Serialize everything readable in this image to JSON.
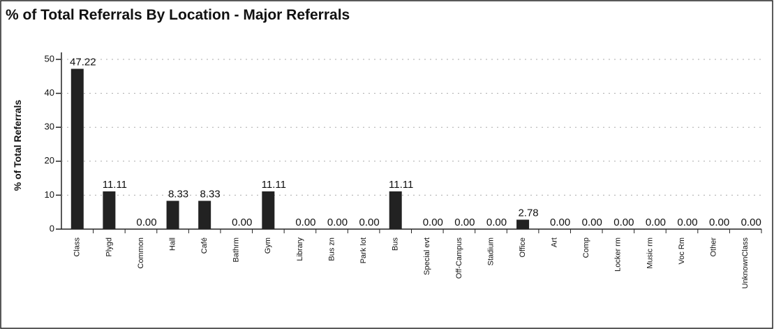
{
  "chart_data": {
    "type": "bar",
    "title": "% of Total Referrals By Location - Major Referrals",
    "y_label": "% of Total Referrals",
    "categories": [
      "Class",
      "Plygd",
      "Common",
      "Hall",
      "Café",
      "Bathrm",
      "Gym",
      "Library",
      "Bus zn",
      "Park lot",
      "Bus",
      "Special evt",
      "Off-Campus",
      "Stadium",
      "Office",
      "Art",
      "Comp",
      "Locker rm",
      "Music rm",
      "Voc Rm",
      "Other",
      "UnknownClass"
    ],
    "values": [
      47.22,
      11.11,
      0,
      8.33,
      8.33,
      0,
      11.11,
      0,
      0,
      0,
      11.11,
      0,
      0,
      0,
      2.78,
      0,
      0,
      0,
      0,
      0,
      0,
      0
    ],
    "value_labels": [
      "47.22",
      "11.11",
      "0.00",
      "8.33",
      "8.33",
      "0.00",
      "11.11",
      "0.00",
      "0.00",
      "0.00",
      "11.11",
      "0.00",
      "0.00",
      "0.00",
      "2.78",
      "0.00",
      "0.00",
      "0.00",
      "0.00",
      "0.00",
      "0.00",
      "0.00"
    ],
    "color": "#222222",
    "ylim": [
      0,
      50
    ],
    "yticks": [
      0,
      10,
      20,
      30,
      40,
      50
    ],
    "grid": true
  }
}
